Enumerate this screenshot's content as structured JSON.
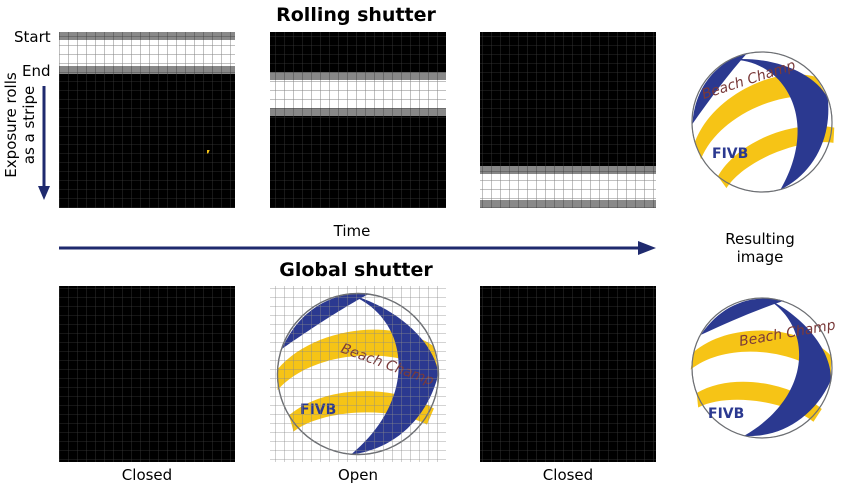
{
  "rolling": {
    "title": "Rolling shutter",
    "start_label": "Start",
    "end_label": "End",
    "side_label_line1": "Exposure rolls",
    "side_label_line2": "as a stripe"
  },
  "time_label": "Time",
  "result": {
    "line1": "Resulting",
    "line2": "image"
  },
  "global": {
    "title": "Global shutter",
    "frame_labels": [
      "Closed",
      "Open",
      "Closed"
    ]
  },
  "ball": {
    "brand": "Beach Champ",
    "logo": "FIVB"
  },
  "colors": {
    "navy": "#2b3990",
    "yellow": "#f6c416",
    "arrow": "#1f2a6e",
    "gray_band": "#888888"
  }
}
